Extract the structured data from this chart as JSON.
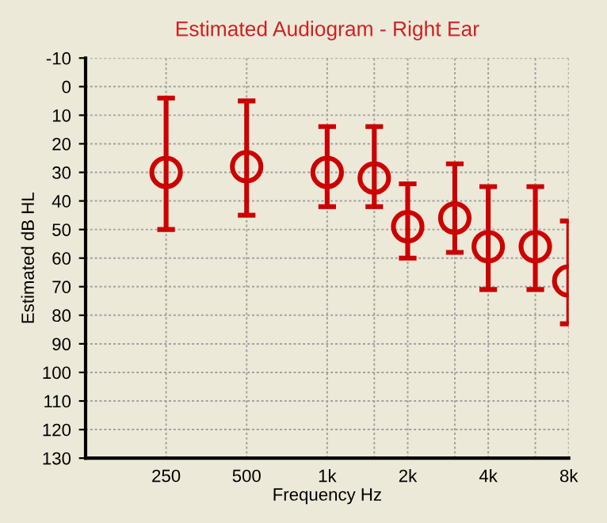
{
  "chart_data": {
    "type": "scatter",
    "title": "Estimated Audiogram - Right Ear",
    "xlabel": "Frequency Hz",
    "ylabel": "Estimated dB HL",
    "x": [
      250,
      500,
      1000,
      1500,
      2000,
      3000,
      4000,
      6000,
      8000
    ],
    "series": [
      {
        "color": "#cc0000",
        "values": [
          30,
          28,
          30,
          32,
          49,
          46,
          56,
          56,
          68
        ],
        "errors": [
          [
            4,
            50
          ],
          [
            5,
            45
          ],
          [
            14,
            42
          ],
          [
            14,
            42
          ],
          [
            34,
            60
          ],
          [
            27,
            58
          ],
          [
            35,
            71
          ],
          [
            35,
            71
          ],
          [
            47,
            83
          ]
        ]
      }
    ],
    "marker": "circle",
    "log": "x",
    "grid": true,
    "xlim": [
      125,
      8000
    ],
    "xticks": [
      250,
      500,
      {
        "value": 1000,
        "label": "1k"
      },
      {
        "value": 1500,
        "label": null
      },
      {
        "value": 2000,
        "label": "2k"
      },
      {
        "value": 3000,
        "label": null
      },
      {
        "value": 4000,
        "label": "4k"
      },
      {
        "value": 6000,
        "label": null
      },
      {
        "value": 8000,
        "label": "8k"
      }
    ],
    "ylim": [
      130,
      -10
    ],
    "yticks": [
      -10,
      0,
      10,
      20,
      30,
      40,
      50,
      60,
      70,
      80,
      90,
      100,
      110,
      120,
      130
    ]
  }
}
